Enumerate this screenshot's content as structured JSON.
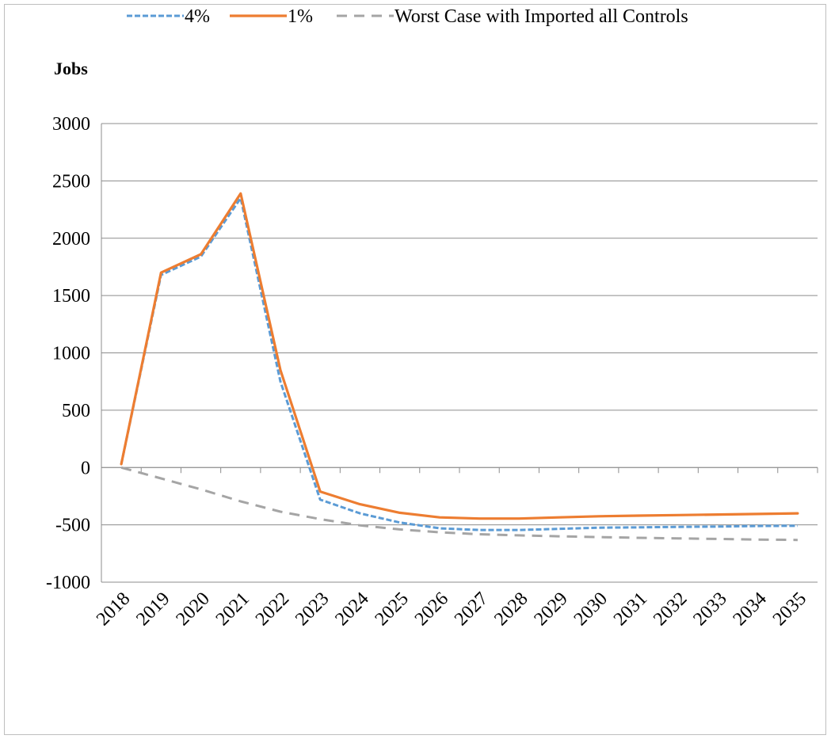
{
  "chart_data": {
    "type": "line",
    "title": "",
    "xlabel": "",
    "ylabel": "Jobs",
    "ylim": [
      -1000,
      3000
    ],
    "yticks": [
      -1000,
      -500,
      0,
      500,
      1000,
      1500,
      2000,
      2500,
      3000
    ],
    "grid": true,
    "legend": "top",
    "x": [
      "2018",
      "2019",
      "2020",
      "2021",
      "2022",
      "2023",
      "2024",
      "2025",
      "2026",
      "2027",
      "2028",
      "2029",
      "2030",
      "2031",
      "2032",
      "2033",
      "2034",
      "2035"
    ],
    "series": [
      {
        "name": "4%",
        "color": "#5B9BD5",
        "style": "dotted",
        "values": [
          30,
          1680,
          1840,
          2350,
          750,
          -280,
          -400,
          -480,
          -530,
          -545,
          -545,
          -535,
          -525,
          -522,
          -518,
          -515,
          -510,
          -508
        ]
      },
      {
        "name": "1%",
        "color": "#ED7D31",
        "style": "solid",
        "values": [
          30,
          1700,
          1860,
          2390,
          850,
          -210,
          -320,
          -395,
          -435,
          -445,
          -445,
          -435,
          -425,
          -420,
          -415,
          -410,
          -405,
          -400
        ]
      },
      {
        "name": "Worst Case with Imported all Controls",
        "color": "#A5A5A5",
        "style": "dashed",
        "values": [
          0,
          -95,
          -190,
          -295,
          -385,
          -450,
          -505,
          -540,
          -565,
          -582,
          -592,
          -600,
          -607,
          -613,
          -618,
          -623,
          -628,
          -632
        ]
      }
    ]
  }
}
